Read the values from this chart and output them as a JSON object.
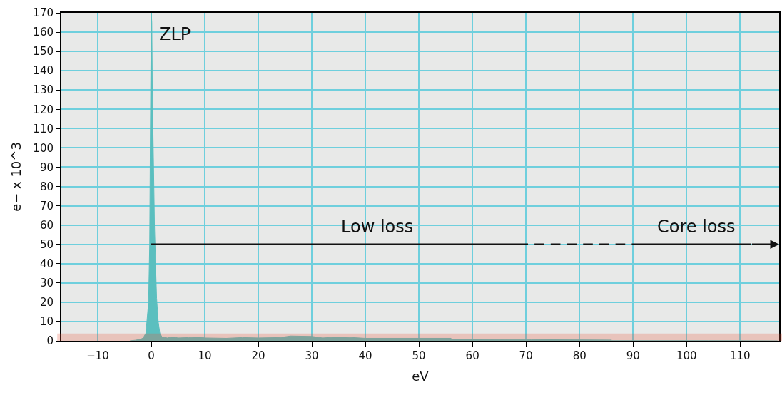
{
  "chart_data": {
    "type": "area",
    "xlabel": "eV",
    "ylabel": "e− x 10^3",
    "x": [
      -4,
      -3,
      -2,
      -1.5,
      -1,
      -0.5,
      -0.3,
      -0.2,
      -0.1,
      0,
      0.1,
      0.2,
      0.4,
      0.6,
      0.8,
      1,
      1.3,
      1.6,
      2,
      3,
      4,
      5,
      7,
      9,
      10,
      14,
      17,
      20,
      24,
      26,
      30,
      32,
      35,
      37,
      40,
      56,
      56.1,
      71,
      86,
      86.1,
      104,
      117
    ],
    "series": [
      {
        "color": "#5bbfbf",
        "values": [
          0,
          0.3,
          0.8,
          1.5,
          4,
          20,
          50,
          95,
          135,
          170,
          165,
          130,
          95,
          60,
          40,
          22,
          10,
          4,
          2,
          1.5,
          2,
          1.5,
          1.7,
          2,
          1.5,
          1.3,
          1.7,
          1.5,
          1.7,
          2.5,
          2.3,
          1.5,
          2,
          1.8,
          1.3,
          1.3,
          0.8,
          0.6,
          0.4,
          0.1,
          0.1,
          0
        ]
      }
    ],
    "xlim": [
      -16.8,
      117.3
    ],
    "xticks": [
      {
        "value": -10,
        "label": "−10"
      },
      0,
      10,
      20,
      30,
      40,
      50,
      60,
      70,
      80,
      90,
      100,
      110
    ],
    "ylim": [
      0,
      170
    ],
    "yticks": [
      0,
      10,
      20,
      30,
      40,
      50,
      60,
      70,
      80,
      90,
      100,
      110,
      120,
      130,
      140,
      150,
      160,
      170
    ],
    "grid": true,
    "bands": [
      {
        "axis": "y",
        "from": 0,
        "to": 3.5,
        "color": "#e8553a"
      }
    ],
    "ref_lines": [
      {
        "axis": "y",
        "value": 50,
        "color": "#111111"
      }
    ],
    "annotations": [
      {
        "text": "ZLP",
        "x": 0,
        "y": 170
      },
      "Low loss",
      "Core loss"
    ]
  }
}
